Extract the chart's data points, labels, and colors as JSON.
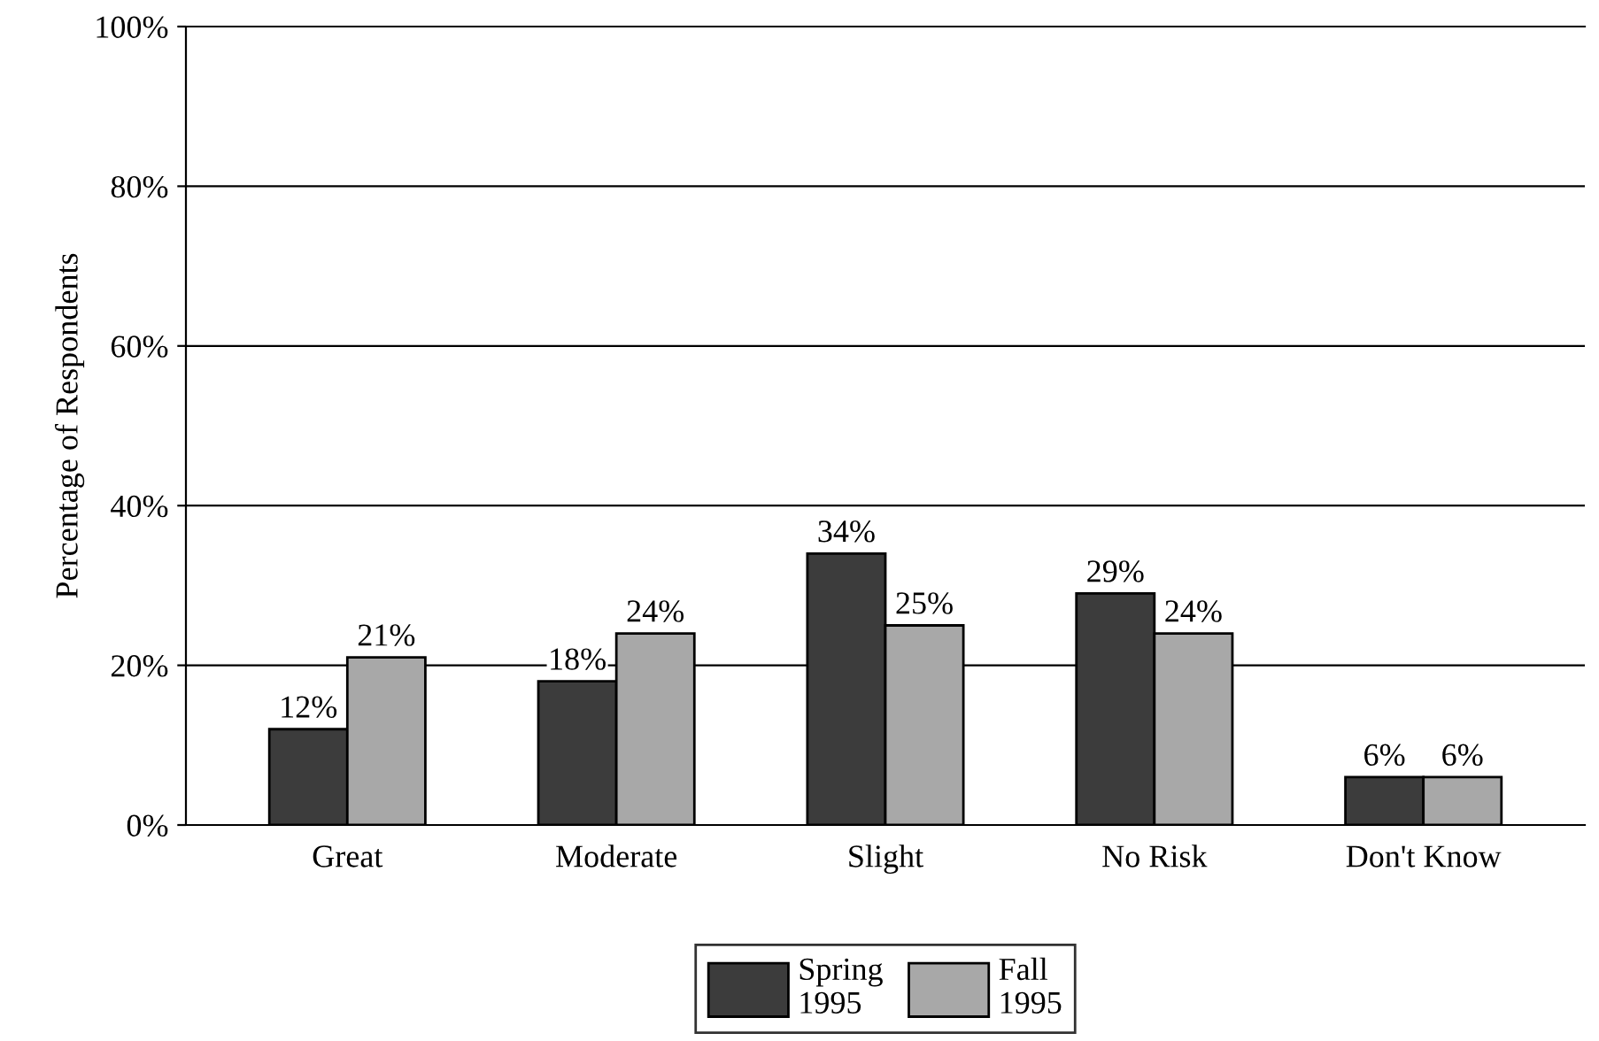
{
  "chart_data": {
    "type": "bar",
    "ylabel": "Percentage of Respondents",
    "categories": [
      "Great",
      "Moderate",
      "Slight",
      "No Risk",
      "Don't Know"
    ],
    "series": [
      {
        "name": "Spring\n1995",
        "color": "#3c3c3c",
        "values": [
          12,
          18,
          34,
          29,
          6
        ],
        "value_labels": [
          "12%",
          "18%",
          "34%",
          "29%",
          "6%"
        ]
      },
      {
        "name": "Fall\n1995",
        "color": "#a8a8a8",
        "values": [
          21,
          24,
          25,
          24,
          6
        ],
        "value_labels": [
          "21%",
          "24%",
          "25%",
          "24%",
          "6%"
        ]
      }
    ],
    "ylim": [
      0,
      100
    ],
    "yticks": [
      {
        "value": 0,
        "label": "0%"
      },
      {
        "value": 20,
        "label": "20%"
      },
      {
        "value": 40,
        "label": "40%"
      },
      {
        "value": 60,
        "label": "60%"
      },
      {
        "value": 80,
        "label": "80%"
      },
      {
        "value": 100,
        "label": "100%"
      }
    ],
    "grid": "y",
    "legend": "bottom"
  }
}
